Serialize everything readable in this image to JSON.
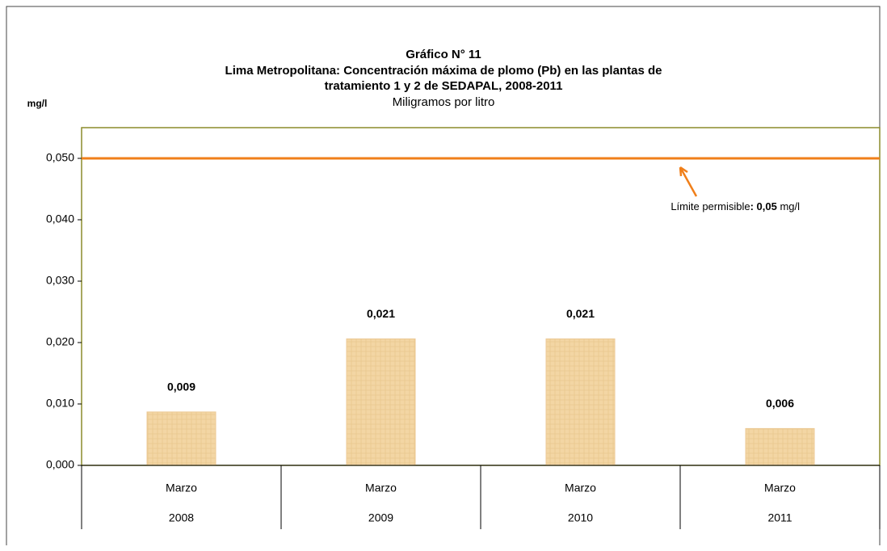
{
  "chart_data": {
    "type": "bar",
    "title": [
      "Gráfico N° 11",
      "Lima Metropolitana: Concentración máxima de plomo (Pb) en las plantas de",
      "tratamiento 1 y 2 de SEDAPAL, 2008-2011"
    ],
    "subtitle": "Miligramos por litro",
    "y_label": "mg/l",
    "categories": [
      "2008",
      "2009",
      "2010",
      "2011"
    ],
    "category_months": [
      "Marzo",
      "Marzo",
      "Marzo",
      "Marzo"
    ],
    "values": [
      0.0087,
      0.0206,
      0.0206,
      0.006
    ],
    "value_labels": [
      "0,009",
      "0,021",
      "0,021",
      "0,006"
    ],
    "color": "#f3d6a4",
    "limit": {
      "value": 0.05,
      "color": "#f07f1a"
    },
    "annotation": [
      "Límite permisible",
      ": 0,05",
      " mg/l"
    ],
    "ylim": [
      0,
      0.055
    ],
    "yticks": [
      {
        "value": 0,
        "label": "0,000"
      },
      {
        "value": 0.01,
        "label": "0,010"
      },
      {
        "value": 0.02,
        "label": "0,020"
      },
      {
        "value": 0.03,
        "label": "0,030"
      },
      {
        "value": 0.04,
        "label": "0,040"
      },
      {
        "value": 0.05,
        "label": "0,050"
      }
    ],
    "grid": false
  }
}
